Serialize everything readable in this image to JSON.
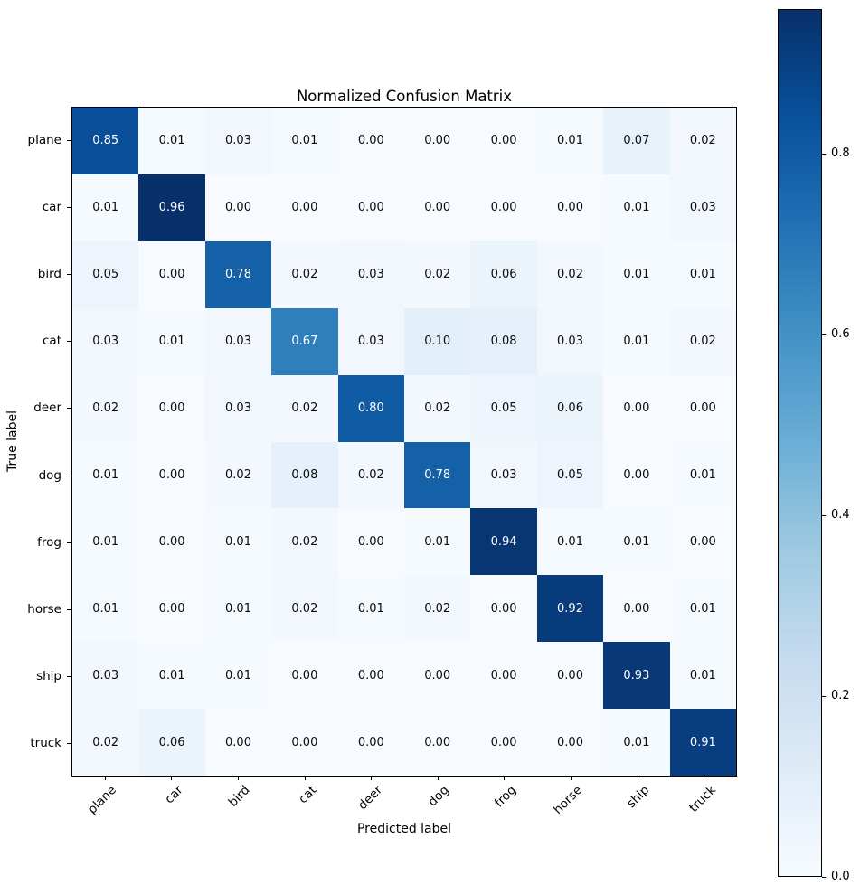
{
  "chart_data": {
    "type": "heatmap",
    "title": "Normalized Confusion Matrix",
    "xlabel": "Predicted label",
    "ylabel": "True label",
    "categories": [
      "plane",
      "car",
      "bird",
      "cat",
      "deer",
      "dog",
      "frog",
      "horse",
      "ship",
      "truck"
    ],
    "matrix": [
      [
        0.85,
        0.01,
        0.03,
        0.01,
        0.0,
        0.0,
        0.0,
        0.01,
        0.07,
        0.02
      ],
      [
        0.01,
        0.96,
        0.0,
        0.0,
        0.0,
        0.0,
        0.0,
        0.0,
        0.01,
        0.03
      ],
      [
        0.05,
        0.0,
        0.78,
        0.02,
        0.03,
        0.02,
        0.06,
        0.02,
        0.01,
        0.01
      ],
      [
        0.03,
        0.01,
        0.03,
        0.67,
        0.03,
        0.1,
        0.08,
        0.03,
        0.01,
        0.02
      ],
      [
        0.02,
        0.0,
        0.03,
        0.02,
        0.8,
        0.02,
        0.05,
        0.06,
        0.0,
        0.0
      ],
      [
        0.01,
        0.0,
        0.02,
        0.08,
        0.02,
        0.78,
        0.03,
        0.05,
        0.0,
        0.01
      ],
      [
        0.01,
        0.0,
        0.01,
        0.02,
        0.0,
        0.01,
        0.94,
        0.01,
        0.01,
        0.0
      ],
      [
        0.01,
        0.0,
        0.01,
        0.02,
        0.01,
        0.02,
        0.0,
        0.92,
        0.0,
        0.01
      ],
      [
        0.03,
        0.01,
        0.01,
        0.0,
        0.0,
        0.0,
        0.0,
        0.0,
        0.93,
        0.01
      ],
      [
        0.02,
        0.06,
        0.0,
        0.0,
        0.0,
        0.0,
        0.0,
        0.0,
        0.01,
        0.91
      ]
    ],
    "vmin": 0.0,
    "vmax": 0.96,
    "value_decimals": 2,
    "colorbar": {
      "ticks": [
        0.0,
        0.2,
        0.4,
        0.6,
        0.8
      ],
      "tick_labels": [
        "0.0",
        "0.2",
        "0.4",
        "0.6",
        "0.8"
      ],
      "position": "right"
    },
    "colormap": "Blues",
    "grid": false
  },
  "colors": {
    "cmap_stops": [
      {
        "p": 0.0,
        "hex": "#f7fbff"
      },
      {
        "p": 0.125,
        "hex": "#deebf7"
      },
      {
        "p": 0.25,
        "hex": "#c6dbef"
      },
      {
        "p": 0.375,
        "hex": "#9ecae1"
      },
      {
        "p": 0.5,
        "hex": "#6baed6"
      },
      {
        "p": 0.625,
        "hex": "#4292c6"
      },
      {
        "p": 0.75,
        "hex": "#2171b5"
      },
      {
        "p": 0.875,
        "hex": "#08519c"
      },
      {
        "p": 1.0,
        "hex": "#08306b"
      },
      {
        "p": 1.0,
        "hex": "#08306b"
      }
    ],
    "cell_text_dark": "#0a0a0a",
    "cell_text_light": "#ffffff",
    "axis_color": "#000000",
    "background": "#ffffff"
  }
}
